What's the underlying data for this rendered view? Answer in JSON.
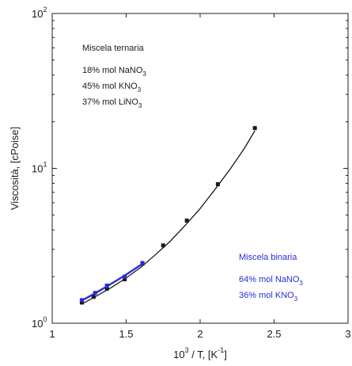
{
  "chart_data": {
    "type": "line",
    "xlabel": "10",
    "xlabel_sup": "3",
    "xlabel_rest": " / T, [K",
    "xlabel_rest_sup": "-1",
    "xlabel_close": "]",
    "ylabel": "Viscosità, [cPoise]",
    "xlim": [
      1,
      3
    ],
    "ylim": [
      1,
      100
    ],
    "yscale": "log",
    "xticks": [
      "1",
      "1.5",
      "2",
      "2.5",
      "3"
    ],
    "yticks": [
      {
        "base": "10",
        "exp": "0",
        "value": 1
      },
      {
        "base": "10",
        "exp": "1",
        "value": 10
      },
      {
        "base": "10",
        "exp": "2",
        "value": 100
      }
    ],
    "grid": false,
    "series": [
      {
        "color": "#1a1a1a",
        "points": [
          {
            "x": 1.2,
            "y": 1.36
          },
          {
            "x": 1.28,
            "y": 1.48
          },
          {
            "x": 1.37,
            "y": 1.67
          },
          {
            "x": 1.49,
            "y": 1.92
          },
          {
            "x": 1.61,
            "y": 2.42
          },
          {
            "x": 1.75,
            "y": 3.18
          },
          {
            "x": 1.91,
            "y": 4.6
          },
          {
            "x": 2.12,
            "y": 7.9
          },
          {
            "x": 2.37,
            "y": 18.2
          }
        ],
        "fit_curve": [
          {
            "x": 1.2,
            "y": 1.33
          },
          {
            "x": 1.3,
            "y": 1.5
          },
          {
            "x": 1.4,
            "y": 1.7
          },
          {
            "x": 1.5,
            "y": 1.96
          },
          {
            "x": 1.6,
            "y": 2.3
          },
          {
            "x": 1.7,
            "y": 2.78
          },
          {
            "x": 1.8,
            "y": 3.4
          },
          {
            "x": 1.9,
            "y": 4.3
          },
          {
            "x": 2.0,
            "y": 5.5
          },
          {
            "x": 2.1,
            "y": 7.3
          },
          {
            "x": 2.2,
            "y": 9.8
          },
          {
            "x": 2.3,
            "y": 13.5
          },
          {
            "x": 2.37,
            "y": 17.5
          }
        ]
      },
      {
        "color": "#2b2bd6",
        "points": [
          {
            "x": 1.2,
            "y": 1.41
          },
          {
            "x": 1.29,
            "y": 1.57
          },
          {
            "x": 1.37,
            "y": 1.75
          },
          {
            "x": 1.49,
            "y": 2.0
          },
          {
            "x": 1.61,
            "y": 2.45
          }
        ],
        "fit_curve": [
          {
            "x": 1.2,
            "y": 1.4
          },
          {
            "x": 1.3,
            "y": 1.58
          },
          {
            "x": 1.4,
            "y": 1.8
          },
          {
            "x": 1.5,
            "y": 2.06
          },
          {
            "x": 1.61,
            "y": 2.42
          }
        ]
      }
    ],
    "annotations": {
      "ternary": {
        "title": "Miscela ternaria",
        "lines": [
          {
            "pre": "18% mol NaNO",
            "sub": "3"
          },
          {
            "pre": "45% mol KNO",
            "sub": "3"
          },
          {
            "pre": "37% mol LiNO",
            "sub": "3"
          }
        ],
        "color": "#1a1a1a"
      },
      "binary": {
        "title": "Miscela binaria",
        "lines": [
          {
            "pre": "64% mol NaNO",
            "sub": "3"
          },
          {
            "pre": "36% mol KNO",
            "sub": "3"
          }
        ],
        "color": "#2b2bd6"
      }
    }
  }
}
